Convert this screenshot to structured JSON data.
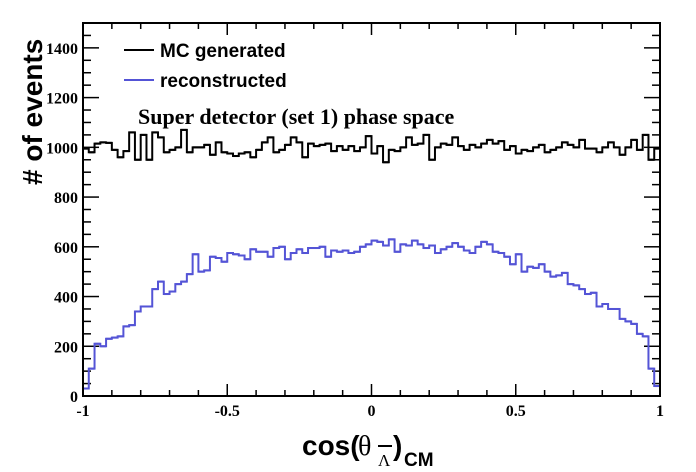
{
  "chart_data": {
    "type": "line",
    "style": "step-histogram",
    "title": "",
    "annotation": "Super detector (set 1) phase space",
    "xlabel": "cos(θ_Λ̄)_CM",
    "xlabel_parts": {
      "prefix": "cos(",
      "theta": "θ",
      "sub": "Λ",
      "suffix": ")",
      "sub2": "CM"
    },
    "ylabel": "# of events",
    "xlim": [
      -1,
      1
    ],
    "ylim": [
      0,
      1500
    ],
    "x_ticks": [
      -1,
      -0.5,
      0,
      0.5,
      1
    ],
    "x_tick_labels": [
      "-1",
      "-0.5",
      "0",
      "0.5",
      "1"
    ],
    "y_ticks": [
      0,
      200,
      400,
      600,
      800,
      1000,
      1200,
      1400
    ],
    "y_tick_labels": [
      "0",
      "200",
      "400",
      "600",
      "800",
      "1000",
      "1200",
      "1400"
    ],
    "grid": false,
    "legend_position": "top-left",
    "bins": 100,
    "series": [
      {
        "name": "MC generated",
        "color": "#000000",
        "values": [
          995,
          980,
          1015,
          1020,
          1018,
          990,
          960,
          985,
          1060,
          950,
          1050,
          950,
          1060,
          1040,
          980,
          990,
          1000,
          1070,
          980,
          1000,
          1000,
          1010,
          970,
          1020,
          980,
          975,
          965,
          975,
          980,
          960,
          990,
          1020,
          1040,
          980,
          990,
          1010,
          1040,
          1020,
          960,
          1015,
          1005,
          1010,
          1015,
          985,
          1005,
          990,
          1005,
          985,
          1000,
          1045,
          975,
          1005,
          940,
          990,
          985,
          1000,
          1040,
          1010,
          1015,
          1050,
          950,
          1000,
          1015,
          1010,
          1040,
          1005,
          990,
          1010,
          1000,
          1015,
          1030,
          1015,
          1025,
          990,
          1005,
          975,
          990,
          985,
          1000,
          1010,
          980,
          990,
          1000,
          1020,
          1010,
          1000,
          1030,
          995,
          995,
          980,
          1000,
          1020,
          1000,
          970,
          1000,
          1030,
          990,
          1050,
          950,
          995
        ]
      },
      {
        "name": "reconstructed",
        "color": "#5454d6",
        "values": [
          30,
          110,
          210,
          200,
          230,
          235,
          240,
          280,
          285,
          340,
          360,
          360,
          430,
          460,
          410,
          420,
          450,
          460,
          490,
          570,
          500,
          505,
          560,
          555,
          540,
          575,
          570,
          565,
          550,
          590,
          580,
          580,
          560,
          595,
          600,
          550,
          575,
          590,
          575,
          595,
          595,
          600,
          560,
          585,
          580,
          585,
          575,
          580,
          600,
          610,
          625,
          620,
          605,
          630,
          580,
          610,
          605,
          625,
          610,
          595,
          605,
          575,
          590,
          600,
          615,
          600,
          585,
          575,
          600,
          620,
          610,
          580,
          575,
          560,
          530,
          570,
          500,
          520,
          515,
          530,
          500,
          480,
          485,
          495,
          450,
          445,
          430,
          410,
          415,
          360,
          370,
          350,
          350,
          310,
          300,
          290,
          250,
          240,
          110,
          40
        ]
      }
    ]
  }
}
